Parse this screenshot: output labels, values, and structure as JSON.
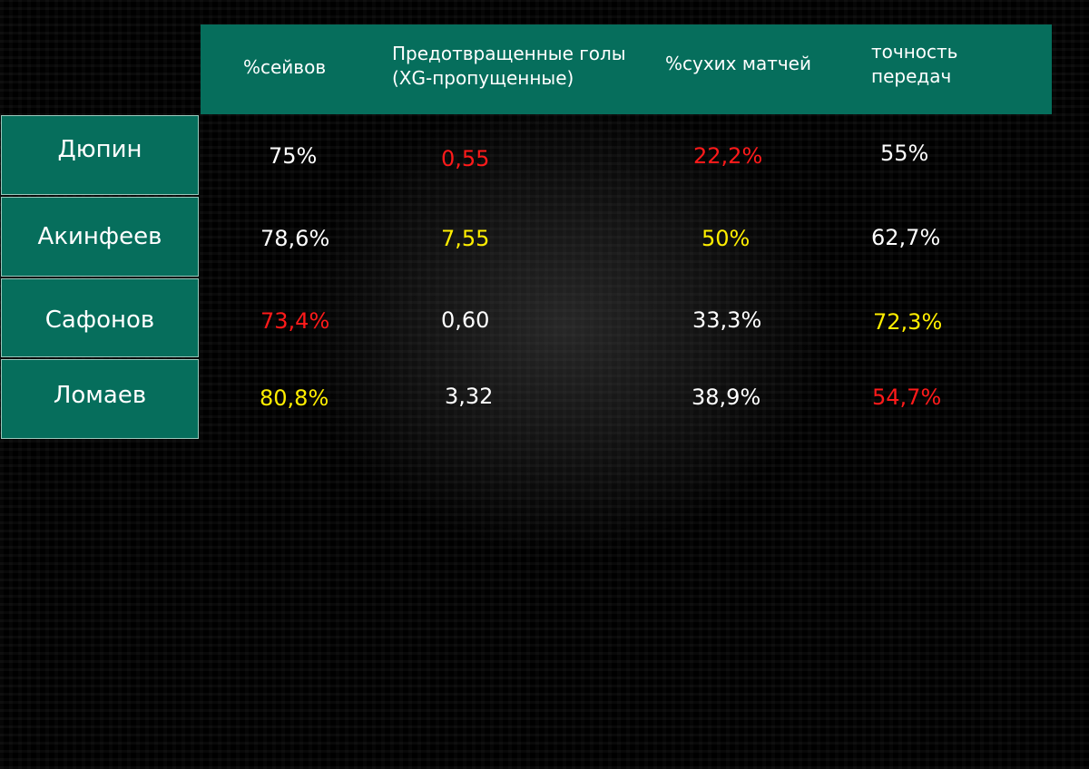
{
  "table": {
    "columns": [
      "%сейвов",
      "Предотвращенные голы\n(XG-пропущенные)",
      "%сухих матчей",
      "точность\nпередач"
    ],
    "rows": [
      {
        "name": "Дюпин",
        "values": [
          "75%",
          "0,55",
          "22,2%",
          "55%"
        ],
        "colors": [
          "#ffffff",
          "#ff1a1a",
          "#ff1a1a",
          "#ffffff"
        ]
      },
      {
        "name": "Акинфеев",
        "values": [
          "78,6%",
          "7,55",
          "50%",
          "62,7%"
        ],
        "colors": [
          "#ffffff",
          "#ffee00",
          "#ffee00",
          "#ffffff"
        ]
      },
      {
        "name": "Сафонов",
        "values": [
          "73,4%",
          "0,60",
          "33,3%",
          "72,3%"
        ],
        "colors": [
          "#ff1a1a",
          "#ffffff",
          "#ffffff",
          "#ffee00"
        ]
      },
      {
        "name": "Ломаев",
        "values": [
          "80,8%",
          "3,32",
          "38,9%",
          "54,7%"
        ],
        "colors": [
          "#ffee00",
          "#ffffff",
          "#ffffff",
          "#ff1a1a"
        ]
      }
    ]
  },
  "chart_data": {
    "type": "table",
    "columns": [
      "%сейвов",
      "Предотвращенные голы (XG-пропущенные)",
      "%сухих матчей",
      "точность передач"
    ],
    "rows": [
      "Дюпин",
      "Акинфеев",
      "Сафонов",
      "Ломаев"
    ],
    "values": [
      [
        "75%",
        "0,55",
        "22,2%",
        "55%"
      ],
      [
        "78,6%",
        "7,55",
        "50%",
        "62,7%"
      ],
      [
        "73,4%",
        "0,60",
        "33,3%",
        "72,3%"
      ],
      [
        "80,8%",
        "3,32",
        "38,9%",
        "54,7%"
      ]
    ],
    "colors": {
      "header_bg": "#066e5c",
      "worst": "#ff1a1a",
      "best": "#ffee00",
      "neutral": "#ffffff"
    }
  }
}
